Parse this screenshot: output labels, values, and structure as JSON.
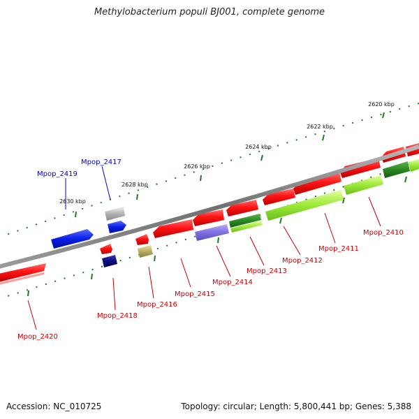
{
  "title": "Methylobacterium populi BJ001, complete genome",
  "accession": "Accession: NC_010725",
  "summary": "Topology: circular; Length: 5,800,441 bp; Genes: 5,388",
  "colors": {
    "backbone": "#808080",
    "tick": "#1e7a1e",
    "label_forward": "#0000cc",
    "label_reverse": "#cc0000"
  },
  "ticks": [
    {
      "label": "2620 kbp"
    },
    {
      "label": "2622 kbp"
    },
    {
      "label": "2624 kbp"
    },
    {
      "label": "2626 kbp"
    },
    {
      "label": "2628 kbp"
    },
    {
      "label": "2630 kbp"
    }
  ],
  "genes": [
    {
      "name": "Mpop_2410",
      "strand": "reverse",
      "color": "#e8141a"
    },
    {
      "name": "Mpop_2411",
      "strand": "reverse",
      "color": "#e8141a"
    },
    {
      "name": "Mpop_2412",
      "strand": "reverse",
      "color": "#e8141a"
    },
    {
      "name": "Mpop_2413",
      "strand": "reverse",
      "color": "#2a8a22"
    },
    {
      "name": "Mpop_2414",
      "strand": "reverse",
      "color": "#7f6fe0"
    },
    {
      "name": "Mpop_2415",
      "strand": "reverse",
      "color": "#e8141a"
    },
    {
      "name": "Mpop_2416",
      "strand": "reverse",
      "color": "#b8ad62"
    },
    {
      "name": "Mpop_2417",
      "strand": "forward",
      "color": "#b3b3b3"
    },
    {
      "name": "Mpop_2418",
      "strand": "reverse",
      "color": "#0a0a80"
    },
    {
      "name": "Mpop_2419",
      "strand": "forward",
      "color": "#0a1ee6"
    },
    {
      "name": "Mpop_2420",
      "strand": "reverse",
      "color": "#e8141a"
    }
  ]
}
